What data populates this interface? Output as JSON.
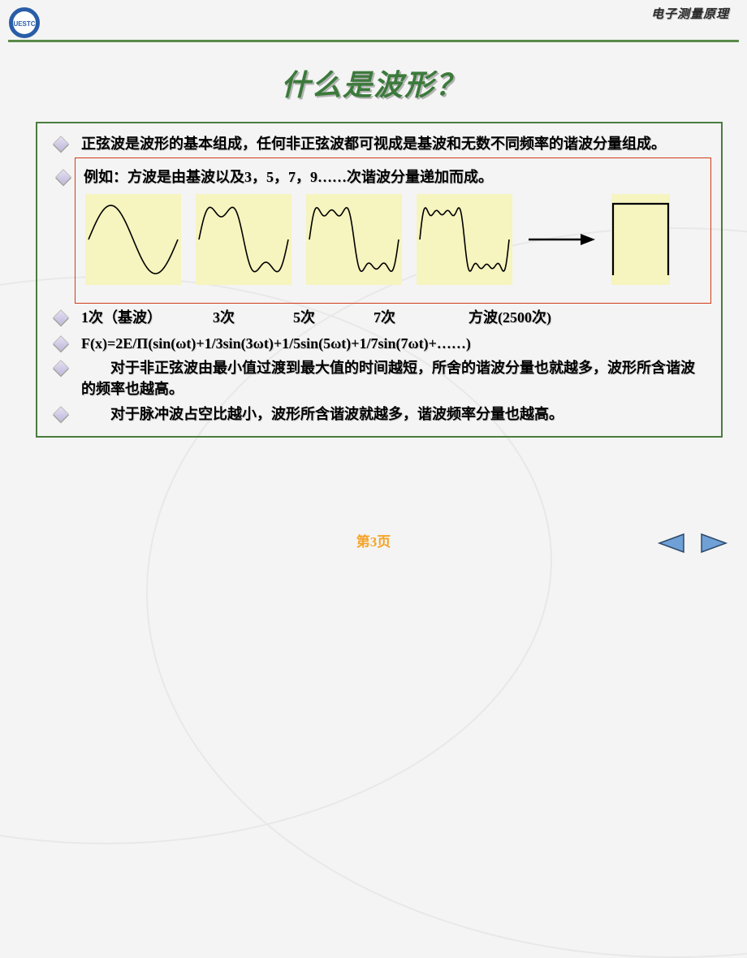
{
  "course_label": "电子测量原理",
  "title": "什么是波形？",
  "bullets": {
    "b1": "正弦波是波形的基本组成，任何非正弦波都可视成是基波和无数不同频率的谐波分量组成。",
    "b2": "例如：方波是由基波以及3，5，7，9……次谐波分量递加而成。",
    "labels": "1次（基波）　　　　3次　　　　5次　　　　7次　　　　　方波(2500次)",
    "labels_tail": "",
    "formula": " F(x)=2E/Π(sin(ωt)+1/3sin(3ωt)+1/5sin(5ωt)+1/7sin(7ωt)+……)",
    "b4": "　　对于非正弦波由最小值过渡到最大值的时间越短，所舍的谐波分量也就越多，波形所含谐波的频率也越高。",
    "b5": "　　对于脉冲波占空比越小，波形所含谐波就越多，谐波频率分量也越高。"
  },
  "page_number": "第3页",
  "waves": {
    "bg_color": "#f6f4bf",
    "stroke": "#000000",
    "stroke_width": 1.6,
    "series": [
      {
        "harmonics": 1
      },
      {
        "harmonics": 2
      },
      {
        "harmonics": 3
      },
      {
        "harmonics": 4
      }
    ]
  },
  "colors": {
    "border_green": "#4a7c3e",
    "red_box": "#d43a1a",
    "title_green": "#3b7a3b",
    "nav_arrow": "#5a8bc4",
    "nav_outline": "#2c4a6b"
  }
}
